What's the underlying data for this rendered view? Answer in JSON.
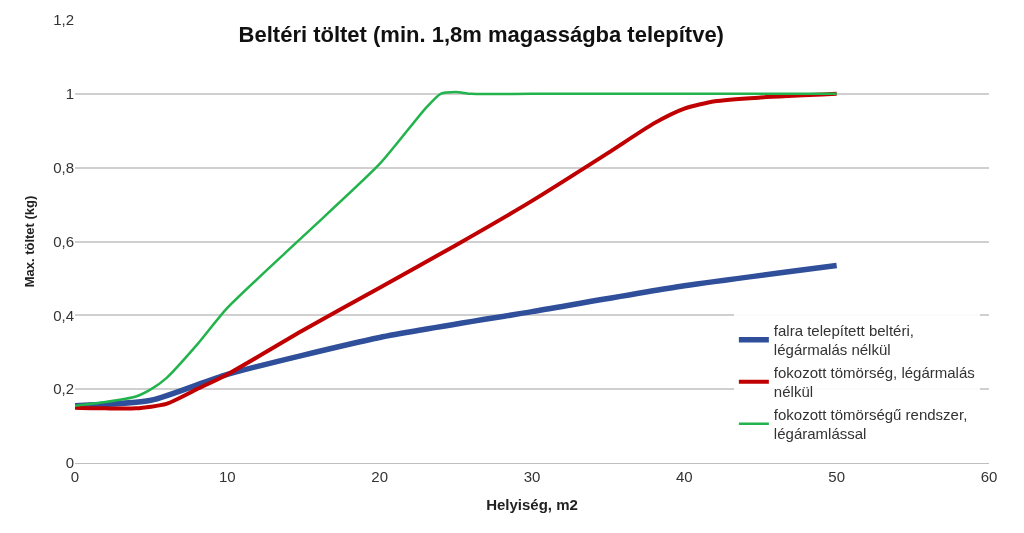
{
  "chart_data": {
    "type": "line",
    "title": "Beltéri töltet (min. 1,8m magasságba telepítve)",
    "xlabel": "Helyiség, m2",
    "ylabel": "Max. töltet (kg)",
    "xlim": [
      0,
      60
    ],
    "xticks": [
      0,
      10,
      20,
      30,
      40,
      50,
      60
    ],
    "ylim": [
      0,
      1.2
    ],
    "yticks": [
      {
        "value": 0,
        "label": "0"
      },
      {
        "value": 0.2,
        "label": "0,2"
      },
      {
        "value": 0.4,
        "label": "0,4"
      },
      {
        "value": 0.6,
        "label": "0,6"
      },
      {
        "value": 0.8,
        "label": "0,8"
      },
      {
        "value": 1,
        "label": "1"
      },
      {
        "value": 1.2,
        "label": "1,2"
      }
    ],
    "grid": "y",
    "legend": "bottom right",
    "line_style": "solid",
    "marker": "none",
    "series": [
      {
        "name": "falra telepített beltéri, légármalás nélkül",
        "color": "#2f4f9a",
        "x": [
          0,
          5,
          10,
          20,
          30,
          40,
          50
        ],
        "values": [
          0.155,
          0.17,
          0.24,
          0.34,
          0.41,
          0.48,
          0.535
        ]
      },
      {
        "name": "fokozott tömörség, légármalás nélkül",
        "color": "#c00000",
        "x": [
          0,
          2,
          4,
          6,
          8,
          10,
          15,
          20,
          25,
          30,
          35,
          38,
          40,
          42,
          45,
          50
        ],
        "values": [
          0.15,
          0.148,
          0.148,
          0.16,
          0.2,
          0.24,
          0.36,
          0.475,
          0.59,
          0.71,
          0.84,
          0.92,
          0.96,
          0.98,
          0.99,
          1.0
        ]
      },
      {
        "name": "fokozott tömörségű rendszer, légáramlással",
        "color": "#22b34c",
        "x": [
          0,
          2,
          4,
          5,
          6,
          8,
          10,
          15,
          20,
          23,
          24,
          25,
          26,
          30,
          50
        ],
        "values": [
          0.155,
          0.165,
          0.18,
          0.2,
          0.23,
          0.32,
          0.42,
          0.615,
          0.81,
          0.96,
          1.0,
          1.005,
          1.0,
          1.0,
          1.0
        ]
      }
    ]
  }
}
